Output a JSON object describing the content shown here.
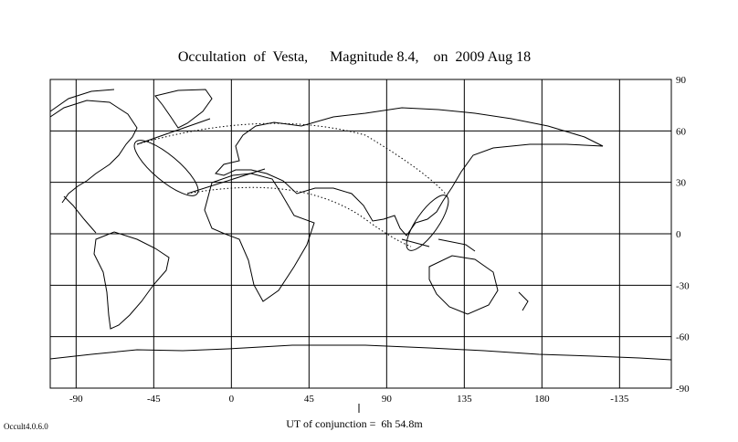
{
  "title": "Occultation  of  Vesta,      Magnitude 8.4,    on  2009 Aug 18",
  "map": {
    "xlim": [
      -105,
      255
    ],
    "ylim": [
      -90,
      90
    ],
    "lon_ticks": [
      -90,
      -45,
      0,
      45,
      90,
      135,
      180,
      -135
    ],
    "lat_ticks": [
      90,
      60,
      30,
      0,
      -30,
      -60,
      -90
    ]
  },
  "conjunction": "UT of conjunction =  6h 54.8m",
  "version": "Occult4.0.6.0"
}
